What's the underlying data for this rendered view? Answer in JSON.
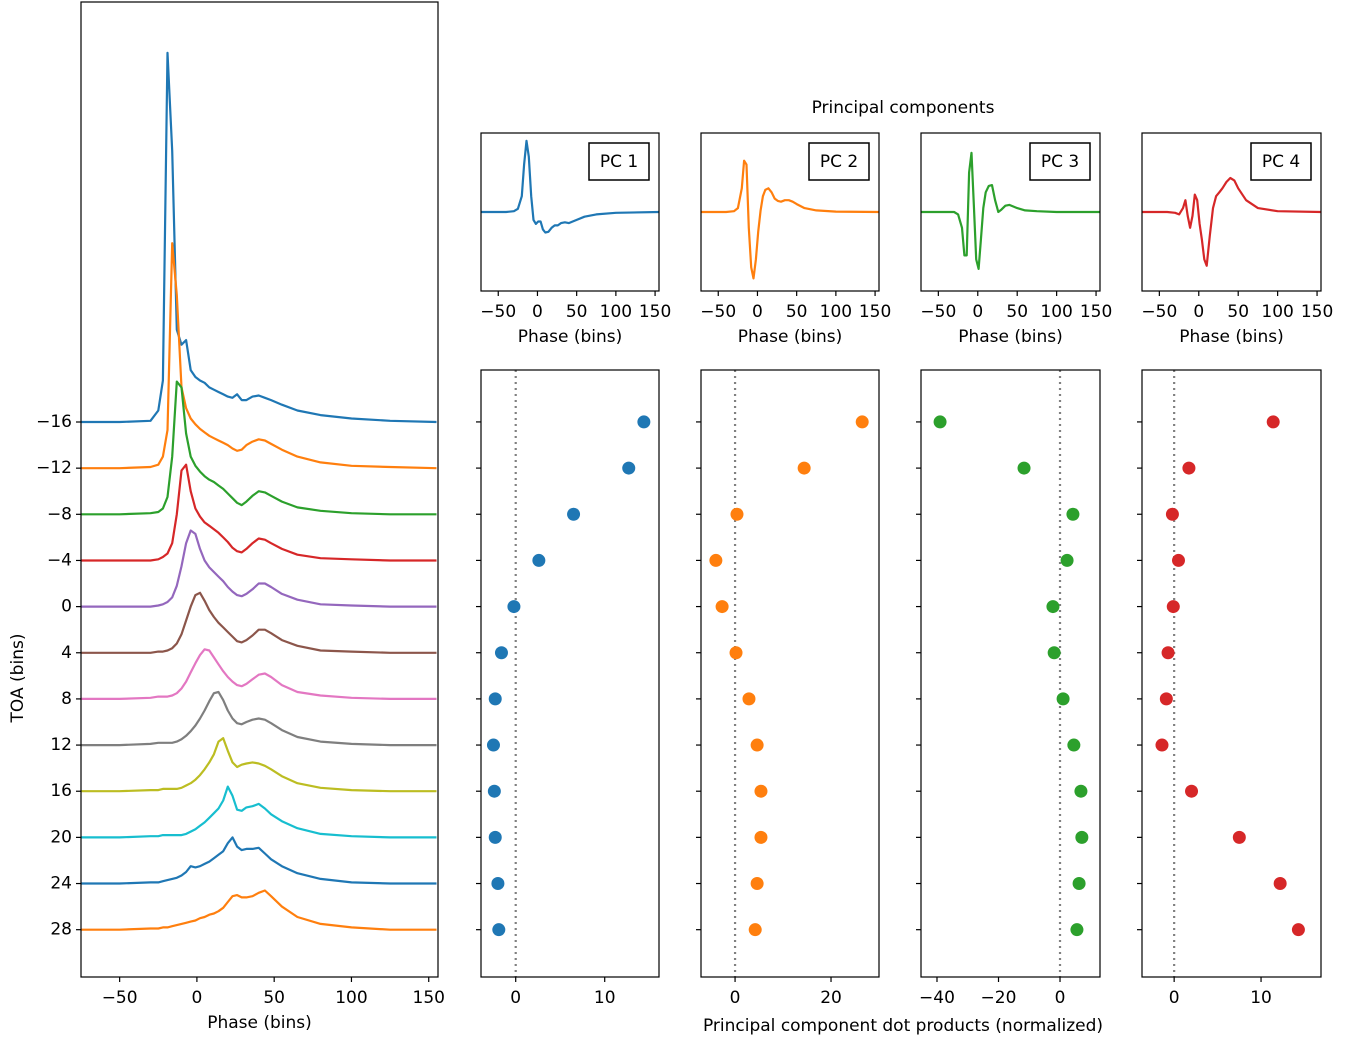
{
  "figure": {
    "title": "Principal components",
    "xlabel": "Principal component dot products (normalized)"
  },
  "chart_data": [
    {
      "type": "line",
      "xlabel": "Phase (bins)",
      "ylabel": "TOA (bins)",
      "xlim": [
        -75,
        156
      ],
      "ylim": [
        32.1,
        -52.4
      ],
      "xticks": [
        {
          "value": -50,
          "label": "−50"
        },
        0,
        50,
        100,
        150
      ],
      "yticks": [
        {
          "value": -16,
          "label": "−16"
        },
        {
          "value": -12,
          "label": "−12"
        },
        {
          "value": -8,
          "label": "−8"
        },
        {
          "value": -4,
          "label": "−4"
        },
        0,
        4,
        8,
        12,
        16,
        20,
        24,
        28
      ],
      "x": [
        -75,
        -50,
        -30,
        -25,
        -22,
        -19,
        -16,
        -13,
        -10,
        -7,
        -4,
        -1,
        2,
        5,
        8,
        11,
        14,
        17,
        20,
        23,
        26,
        29,
        32,
        36,
        40,
        44,
        48,
        55,
        65,
        80,
        100,
        125,
        155
      ],
      "series": [
        {
          "color": "#1f77b4",
          "values": [
            -16,
            -16,
            -16.1,
            -17,
            -19.6,
            -48,
            -39.5,
            -24,
            -22.7,
            -23.1,
            -20.5,
            -19.9,
            -19.6,
            -19.4,
            -19,
            -18.8,
            -18.6,
            -18.4,
            -18.2,
            -18.1,
            -18.4,
            -17.9,
            -17.9,
            -18.2,
            -18.3,
            -18.1,
            -17.9,
            -17.5,
            -17,
            -16.6,
            -16.3,
            -16.1,
            -16
          ]
        },
        {
          "color": "#ff7f0e",
          "values": [
            -12,
            -12,
            -12.1,
            -12.3,
            -13,
            -15.3,
            -31.5,
            -27,
            -19,
            -17.2,
            -16.3,
            -15.8,
            -15.4,
            -15.1,
            -14.8,
            -14.6,
            -14.4,
            -14.2,
            -14,
            -13.7,
            -13.5,
            -13.6,
            -14,
            -14.3,
            -14.5,
            -14.4,
            -14.1,
            -13.6,
            -13,
            -12.5,
            -12.2,
            -12.1,
            -12
          ]
        },
        {
          "color": "#2ca02c",
          "values": [
            -8,
            -8,
            -8.1,
            -8.2,
            -8.5,
            -9.5,
            -13,
            -19.5,
            -19,
            -15,
            -13,
            -12.2,
            -11.7,
            -11.3,
            -11,
            -10.8,
            -10.5,
            -10.2,
            -9.8,
            -9.4,
            -9,
            -8.8,
            -9.1,
            -9.6,
            -10,
            -9.9,
            -9.6,
            -9.1,
            -8.6,
            -8.3,
            -8.1,
            -8,
            -8
          ]
        },
        {
          "color": "#d62728",
          "values": [
            -4,
            -4,
            -4,
            -4.1,
            -4.3,
            -4.6,
            -5.5,
            -8,
            -11.8,
            -12.3,
            -10,
            -8.5,
            -7.8,
            -7.3,
            -7,
            -6.7,
            -6.4,
            -6,
            -5.6,
            -5.1,
            -4.8,
            -4.7,
            -5,
            -5.5,
            -5.9,
            -5.8,
            -5.5,
            -5,
            -4.5,
            -4.2,
            -4.1,
            -4,
            -4
          ]
        },
        {
          "color": "#9467bd",
          "values": [
            0,
            0,
            0,
            -0.1,
            -0.2,
            -0.4,
            -0.8,
            -1.8,
            -3.5,
            -5.5,
            -6.6,
            -6.3,
            -5,
            -4,
            -3.4,
            -3,
            -2.6,
            -2.2,
            -1.7,
            -1.3,
            -1,
            -0.9,
            -1.1,
            -1.5,
            -2,
            -2,
            -1.7,
            -1.1,
            -0.6,
            -0.2,
            -0.1,
            0,
            0
          ]
        },
        {
          "color": "#8c564b",
          "values": [
            4,
            4,
            4,
            3.9,
            3.9,
            3.8,
            3.6,
            3.2,
            2.4,
            1.2,
            0,
            -1,
            -1.2,
            -0.5,
            0.3,
            0.9,
            1.4,
            1.8,
            2.2,
            2.6,
            3,
            3.1,
            2.9,
            2.5,
            2,
            2,
            2.3,
            2.9,
            3.4,
            3.8,
            3.9,
            4,
            4
          ]
        },
        {
          "color": "#e377c2",
          "values": [
            8,
            8,
            7.9,
            7.8,
            7.8,
            7.8,
            7.7,
            7.5,
            7.1,
            6.5,
            5.7,
            4.9,
            4.2,
            3.7,
            3.8,
            4.4,
            5,
            5.6,
            6.1,
            6.5,
            6.8,
            6.9,
            6.7,
            6.3,
            5.9,
            5.8,
            6.1,
            6.8,
            7.4,
            7.7,
            7.9,
            8,
            8
          ]
        },
        {
          "color": "#7f7f7f",
          "values": [
            12,
            12,
            11.9,
            11.8,
            11.8,
            11.8,
            11.8,
            11.7,
            11.5,
            11.2,
            10.8,
            10.3,
            9.7,
            9,
            8.2,
            7.5,
            7.4,
            8.1,
            9,
            9.7,
            10.1,
            10.2,
            10,
            9.8,
            9.7,
            9.8,
            10.1,
            10.7,
            11.3,
            11.7,
            11.9,
            12,
            12
          ]
        },
        {
          "color": "#bcbd22",
          "values": [
            16,
            16,
            15.9,
            15.9,
            15.8,
            15.8,
            15.8,
            15.8,
            15.7,
            15.5,
            15.3,
            15,
            14.6,
            14.1,
            13.5,
            12.8,
            11.7,
            11.4,
            12.5,
            13.5,
            13.9,
            13.7,
            13.6,
            13.5,
            13.6,
            13.8,
            14.1,
            14.7,
            15.3,
            15.7,
            15.9,
            16,
            16
          ]
        },
        {
          "color": "#17becf",
          "values": [
            20,
            20,
            19.9,
            19.9,
            19.8,
            19.8,
            19.8,
            19.8,
            19.8,
            19.7,
            19.5,
            19.3,
            19,
            18.7,
            18.3,
            17.9,
            17.5,
            16.8,
            15.6,
            16.4,
            17.6,
            17.7,
            17.4,
            17.3,
            17.1,
            17.5,
            18,
            18.6,
            19.2,
            19.7,
            19.9,
            20,
            20
          ]
        },
        {
          "color": "#1f77b4",
          "values": [
            24,
            24,
            23.9,
            23.9,
            23.8,
            23.7,
            23.6,
            23.5,
            23.3,
            23,
            22.5,
            22.6,
            22.5,
            22.3,
            22.1,
            21.8,
            21.5,
            21.2,
            20.5,
            20,
            20.8,
            21.1,
            21,
            21,
            20.9,
            21.4,
            21.9,
            22.5,
            23.1,
            23.6,
            23.9,
            24,
            24
          ]
        },
        {
          "color": "#ff7f0e",
          "values": [
            28,
            28,
            27.9,
            27.9,
            27.8,
            27.8,
            27.7,
            27.6,
            27.5,
            27.4,
            27.3,
            27.2,
            27,
            26.9,
            26.7,
            26.6,
            26.4,
            26.1,
            25.6,
            25.1,
            25,
            25.2,
            25.2,
            25.1,
            24.8,
            24.6,
            25.1,
            26,
            26.9,
            27.5,
            27.8,
            28,
            28
          ]
        }
      ]
    },
    {
      "type": "line",
      "label": "PC 1",
      "xlabel": "Phase (bins)",
      "xlim": [
        -72,
        155
      ],
      "ylim": [
        -1,
        1
      ],
      "xticks": [
        {
          "value": -50,
          "label": "−50"
        },
        0,
        50,
        100,
        150
      ],
      "x": [
        -72,
        -40,
        -30,
        -25,
        -20,
        -17,
        -14,
        -11,
        -8,
        -5,
        -2,
        1,
        4,
        7,
        10,
        14,
        18,
        22,
        26,
        30,
        35,
        40,
        45,
        50,
        60,
        75,
        100,
        155
      ],
      "series": [
        {
          "color": "#1f77b4",
          "values": [
            0,
            0,
            0.01,
            0.04,
            0.2,
            0.6,
            0.9,
            0.7,
            0.2,
            -0.1,
            -0.15,
            -0.12,
            -0.12,
            -0.22,
            -0.26,
            -0.25,
            -0.2,
            -0.17,
            -0.17,
            -0.14,
            -0.13,
            -0.14,
            -0.12,
            -0.1,
            -0.06,
            -0.03,
            -0.01,
            0
          ]
        }
      ]
    },
    {
      "type": "line",
      "label": "PC 2",
      "xlabel": "Phase (bins)",
      "xlim": [
        -72,
        155
      ],
      "ylim": [
        -1,
        1
      ],
      "xticks": [
        {
          "value": -50,
          "label": "−50"
        },
        0,
        50,
        100,
        150
      ],
      "x": [
        -72,
        -40,
        -30,
        -25,
        -20,
        -17,
        -14,
        -11,
        -8,
        -5,
        -2,
        1,
        4,
        7,
        10,
        14,
        18,
        22,
        26,
        30,
        35,
        40,
        45,
        50,
        60,
        75,
        100,
        155
      ],
      "series": [
        {
          "color": "#ff7f0e",
          "values": [
            0,
            0,
            0.01,
            0.05,
            0.3,
            0.65,
            0.6,
            -0.2,
            -0.7,
            -0.84,
            -0.6,
            -0.25,
            0.02,
            0.2,
            0.28,
            0.3,
            0.25,
            0.17,
            0.14,
            0.13,
            0.15,
            0.15,
            0.13,
            0.1,
            0.05,
            0.02,
            0.005,
            0
          ]
        }
      ]
    },
    {
      "type": "line",
      "label": "PC 3",
      "xlabel": "Phase (bins)",
      "xlim": [
        -72,
        155
      ],
      "ylim": [
        -1,
        1
      ],
      "xticks": [
        {
          "value": -50,
          "label": "−50"
        },
        0,
        50,
        100,
        150
      ],
      "x": [
        -72,
        -40,
        -30,
        -25,
        -20,
        -17,
        -14,
        -11,
        -8,
        -5,
        -2,
        1,
        4,
        7,
        10,
        14,
        18,
        22,
        26,
        30,
        35,
        40,
        45,
        50,
        60,
        75,
        100,
        155
      ],
      "series": [
        {
          "color": "#2ca02c",
          "values": [
            0,
            0,
            0,
            -0.03,
            -0.2,
            -0.55,
            -0.55,
            0.5,
            0.75,
            0.1,
            -0.6,
            -0.72,
            -0.35,
            0.05,
            0.25,
            0.33,
            0.34,
            0.15,
            0,
            0.03,
            0.08,
            0.09,
            0.07,
            0.05,
            0.02,
            0.01,
            0,
            0
          ]
        }
      ]
    },
    {
      "type": "line",
      "label": "PC 4",
      "xlabel": "Phase (bins)",
      "xlim": [
        -72,
        155
      ],
      "ylim": [
        -1,
        1
      ],
      "xticks": [
        {
          "value": -50,
          "label": "−50"
        },
        0,
        50,
        100,
        150
      ],
      "x": [
        -72,
        -40,
        -30,
        -25,
        -20,
        -17,
        -14,
        -11,
        -8,
        -5,
        -2,
        1,
        4,
        7,
        10,
        14,
        18,
        22,
        26,
        30,
        35,
        40,
        45,
        50,
        60,
        75,
        100,
        155
      ],
      "series": [
        {
          "color": "#d62728",
          "values": [
            0,
            0,
            -0.01,
            -0.03,
            0.05,
            0.15,
            -0.05,
            -0.2,
            -0.05,
            0.22,
            0.15,
            -0.15,
            -0.35,
            -0.6,
            -0.68,
            -0.3,
            0.05,
            0.2,
            0.25,
            0.3,
            0.38,
            0.43,
            0.4,
            0.3,
            0.15,
            0.05,
            0.01,
            0
          ]
        }
      ]
    },
    {
      "type": "scatter",
      "color": "#1f77b4",
      "xlim": [
        -3.9,
        16.1
      ],
      "ylim": [
        32.1,
        -20.5
      ],
      "xticks": [
        0,
        10
      ],
      "yticks": [
        -16,
        -12,
        -8,
        -4,
        0,
        4,
        8,
        12,
        16,
        20,
        24,
        28
      ],
      "ytick_labels": false,
      "vline": 0,
      "x": [
        14.4,
        12.7,
        6.5,
        2.6,
        -0.2,
        -1.6,
        -2.3,
        -2.5,
        -2.4,
        -2.3,
        -2.0,
        -1.9
      ],
      "y": [
        -16,
        -12,
        -8,
        -4,
        0,
        4,
        8,
        12,
        16,
        20,
        24,
        28
      ]
    },
    {
      "type": "scatter",
      "color": "#ff7f0e",
      "xlim": [
        -7.1,
        30
      ],
      "ylim": [
        32.1,
        -20.5
      ],
      "xticks": [
        0,
        20
      ],
      "yticks": [
        -16,
        -12,
        -8,
        -4,
        0,
        4,
        8,
        12,
        16,
        20,
        24,
        28
      ],
      "ytick_labels": false,
      "vline": 0,
      "x": [
        26.5,
        14.4,
        0.4,
        -4.0,
        -2.7,
        0.2,
        2.9,
        4.6,
        5.4,
        5.4,
        4.6,
        4.2
      ],
      "y": [
        -16,
        -12,
        -8,
        -4,
        0,
        4,
        8,
        12,
        16,
        20,
        24,
        28
      ]
    },
    {
      "type": "scatter",
      "color": "#2ca02c",
      "xlim": [
        -45.2,
        13
      ],
      "ylim": [
        32.1,
        -20.5
      ],
      "xticks": [
        {
          "value": -40,
          "label": "−40"
        },
        {
          "value": -20,
          "label": "−20"
        },
        0
      ],
      "yticks": [
        -16,
        -12,
        -8,
        -4,
        0,
        4,
        8,
        12,
        16,
        20,
        24,
        28
      ],
      "ytick_labels": false,
      "vline": 0,
      "x": [
        -39,
        -11.7,
        4.2,
        2.3,
        -2.3,
        -1.9,
        1.0,
        4.5,
        6.8,
        7.1,
        6.2,
        5.5
      ],
      "y": [
        -16,
        -12,
        -8,
        -4,
        0,
        4,
        8,
        12,
        16,
        20,
        24,
        28
      ]
    },
    {
      "type": "scatter",
      "color": "#d62728",
      "xlim": [
        -3.7,
        16.9
      ],
      "ylim": [
        32.1,
        -20.5
      ],
      "xticks": [
        0,
        10
      ],
      "yticks": [
        -16,
        -12,
        -8,
        -4,
        0,
        4,
        8,
        12,
        16,
        20,
        24,
        28
      ],
      "ytick_labels": false,
      "vline": 0,
      "x": [
        11.4,
        1.7,
        -0.2,
        0.5,
        -0.1,
        -0.7,
        -0.9,
        -1.4,
        2.0,
        7.5,
        12.2,
        14.3
      ],
      "y": [
        -16,
        -12,
        -8,
        -4,
        0,
        4,
        8,
        12,
        16,
        20,
        24,
        28
      ]
    }
  ]
}
